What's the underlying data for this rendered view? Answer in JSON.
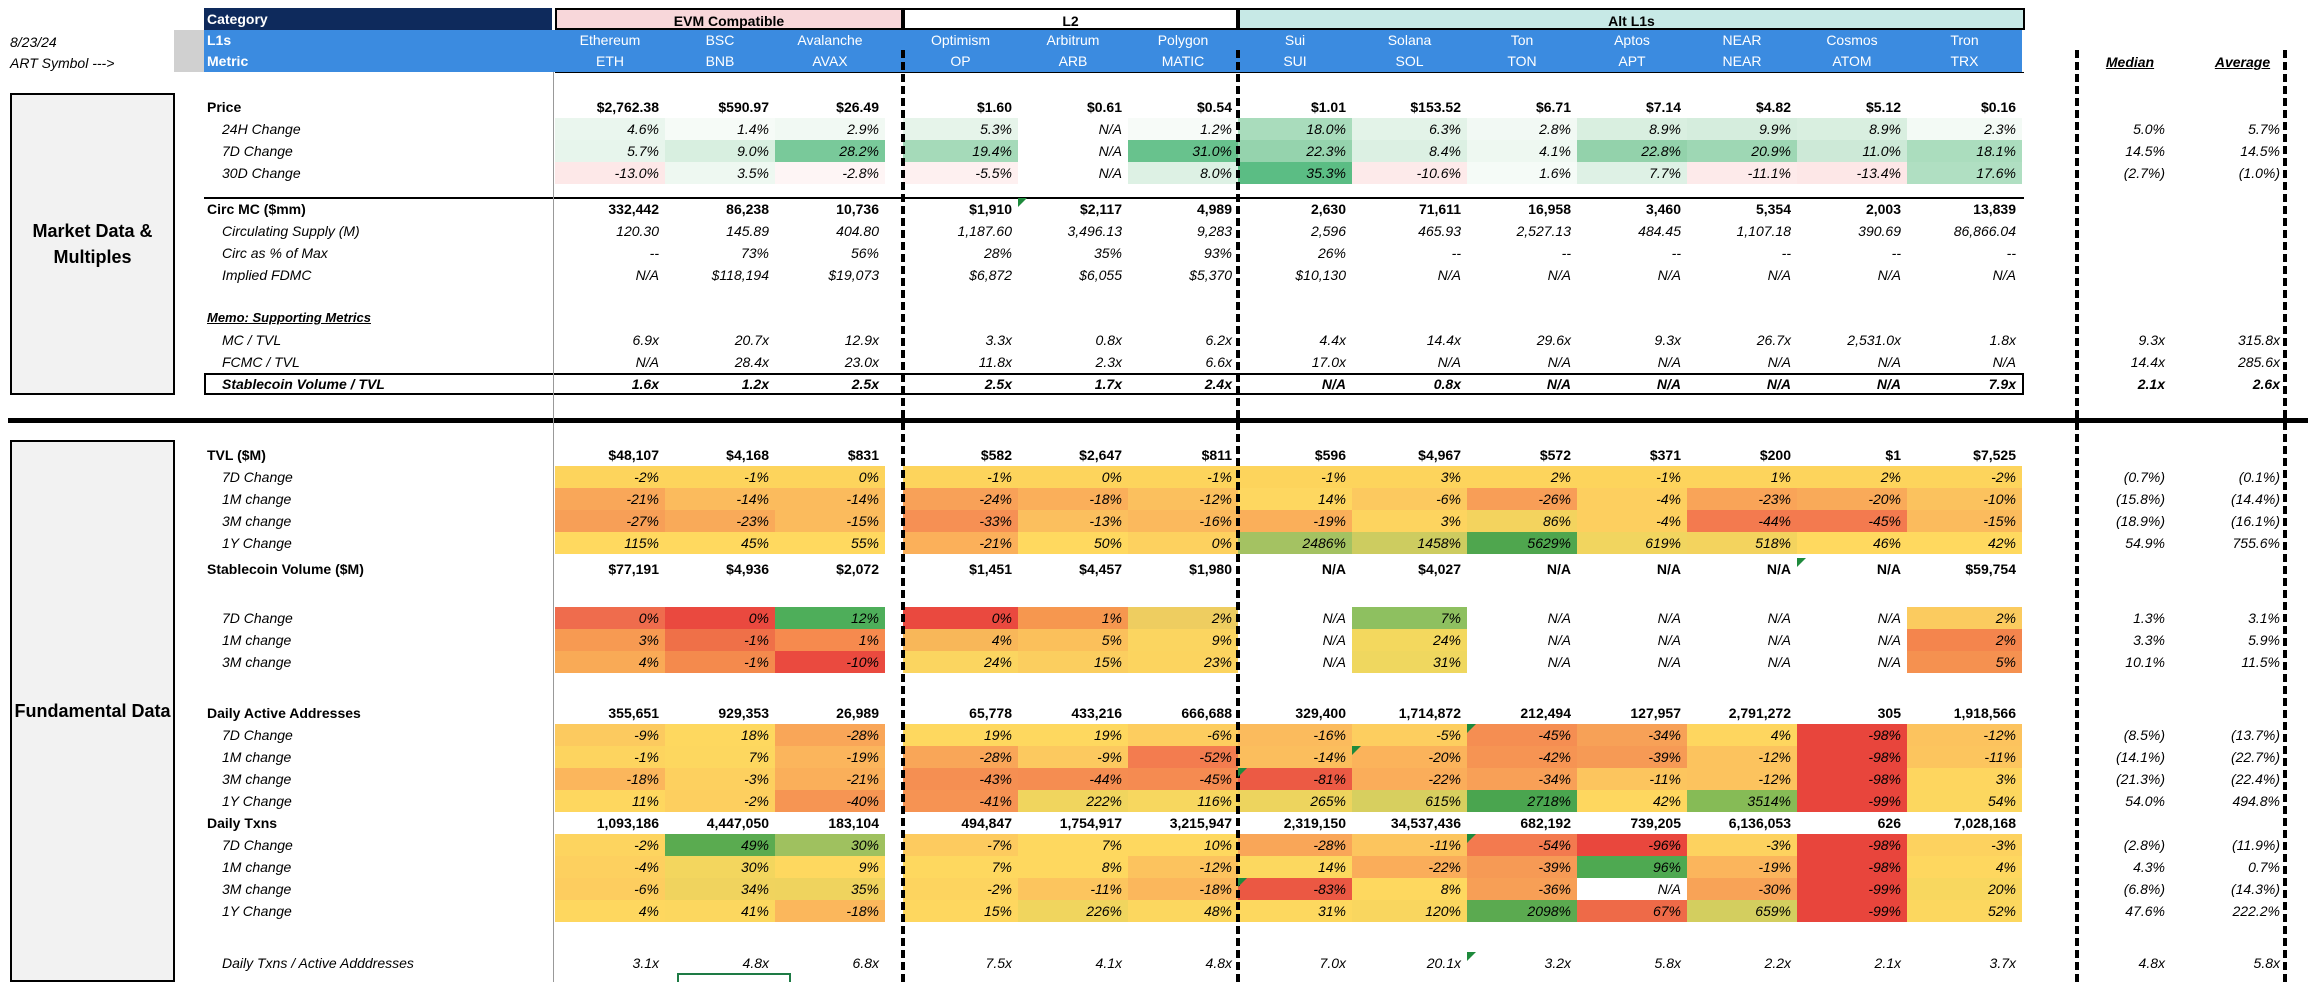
{
  "date": "8/23/24",
  "art_symbol_label": "ART Symbol --->",
  "header": {
    "category_label": "Category",
    "l1s_label": "L1s",
    "metric_label": "Metric",
    "groups": [
      {
        "label": "EVM Compatible",
        "color": "#f8d7da"
      },
      {
        "label": "L2",
        "color": "#ffffff"
      },
      {
        "label": "Alt L1s",
        "color": "#c7e9e6"
      }
    ],
    "chains": [
      "Ethereum",
      "BSC",
      "Avalanche",
      "Optimism",
      "Arbitrum",
      "Polygon",
      "Sui",
      "Solana",
      "Ton",
      "Aptos",
      "NEAR",
      "Cosmos",
      "Tron"
    ],
    "symbols": [
      "ETH",
      "BNB",
      "AVAX",
      "OP",
      "ARB",
      "MATIC",
      "SUI",
      "SOL",
      "TON",
      "APT",
      "NEAR",
      "ATOM",
      "TRX"
    ],
    "median": "Median",
    "average": "Average"
  },
  "sections": [
    "Market Data & Multiples",
    "Fundamental Data"
  ],
  "rows": [
    {
      "label": "Price",
      "bold": true,
      "values": [
        "$2,762.38",
        "$590.97",
        "$26.49",
        "$1.60",
        "$0.61",
        "$0.54",
        "$1.01",
        "$153.52",
        "$6.71",
        "$7.14",
        "$4.82",
        "$5.12",
        "$0.16"
      ],
      "median": "",
      "average": ""
    },
    {
      "label": "24H Change",
      "indent": true,
      "values": [
        "4.6%",
        "1.4%",
        "2.9%",
        "5.3%",
        "N/A",
        "1.2%",
        "18.0%",
        "6.3%",
        "2.8%",
        "8.9%",
        "9.9%",
        "8.9%",
        "2.3%"
      ],
      "colors": [
        "#eaf6ee",
        "#f6fbf7",
        "#f1f9f3",
        "#e6f4ea",
        "",
        "#f7fbf8",
        "#a9dcbc",
        "#e3f3e8",
        "#f2f9f4",
        "#d9efe0",
        "#d5eddd",
        "#d9efe0",
        "#f3faf5"
      ],
      "median": "5.0%",
      "average": "5.7%"
    },
    {
      "label": "7D Change",
      "indent": true,
      "values": [
        "5.7%",
        "9.0%",
        "28.2%",
        "19.4%",
        "N/A",
        "31.0%",
        "22.3%",
        "8.4%",
        "4.1%",
        "22.8%",
        "20.9%",
        "11.0%",
        "18.1%"
      ],
      "colors": [
        "#e7f5ec",
        "#d8efe0",
        "#79c99a",
        "#a5dab9",
        "",
        "#68c28d",
        "#95d3ad",
        "#dcf0e3",
        "#eef8f1",
        "#93d2ab",
        "#9ed7b4",
        "#cde9d7",
        "#abddbe"
      ],
      "median": "14.5%",
      "average": "14.5%"
    },
    {
      "label": "30D Change",
      "indent": true,
      "values": [
        "-13.0%",
        "3.5%",
        "-2.8%",
        "-5.5%",
        "N/A",
        "8.0%",
        "35.3%",
        "-10.6%",
        "1.6%",
        "7.7%",
        "-11.1%",
        "-13.4%",
        "17.6%"
      ],
      "colors": [
        "#fde8e8",
        "#eef8f1",
        "#fef5f5",
        "#fef0f0",
        "",
        "#ddf1e4",
        "#5bbd84",
        "#fdeaea",
        "#f5fbf7",
        "#def1e5",
        "#fdeaea",
        "#fde7e7",
        "#b0dfc2"
      ],
      "median": "(2.7%)",
      "average": "(1.0%)"
    },
    {
      "label": "Circ MC ($mm)",
      "bold": true,
      "values": [
        "332,442",
        "86,238",
        "10,736",
        "$1,910",
        "$2,117",
        "4,989",
        "2,630",
        "71,611",
        "16,958",
        "3,460",
        "5,354",
        "2,003",
        "13,839"
      ],
      "median": "",
      "average": ""
    },
    {
      "label": "Circulating Supply (M)",
      "indent": true,
      "values": [
        "120.30",
        "145.89",
        "404.80",
        "1,187.60",
        "3,496.13",
        "9,283",
        "2,596",
        "465.93",
        "2,527.13",
        "484.45",
        "1,107.18",
        "390.69",
        "86,866.04"
      ],
      "median": "",
      "average": ""
    },
    {
      "label": "Circ as % of Max",
      "indent": true,
      "values": [
        "--",
        "73%",
        "56%",
        "28%",
        "35%",
        "93%",
        "26%",
        "--",
        "--",
        "--",
        "--",
        "--",
        "--"
      ],
      "median": "",
      "average": ""
    },
    {
      "label": "Implied FDMC",
      "indent": true,
      "values": [
        "N/A",
        "$118,194",
        "$19,073",
        "$6,872",
        "$6,055",
        "$5,370",
        "$10,130",
        "N/A",
        "N/A",
        "N/A",
        "N/A",
        "N/A",
        "N/A"
      ],
      "median": "",
      "average": ""
    },
    {
      "label": "Memo: Supporting Metrics",
      "memo": true,
      "values": [],
      "median": "",
      "average": ""
    },
    {
      "label": "MC / TVL",
      "indent": true,
      "values": [
        "6.9x",
        "20.7x",
        "12.9x",
        "3.3x",
        "0.8x",
        "6.2x",
        "4.4x",
        "14.4x",
        "29.6x",
        "9.3x",
        "26.7x",
        "2,531.0x",
        "1.8x"
      ],
      "median": "9.3x",
      "average": "315.8x"
    },
    {
      "label": "FCMC / TVL",
      "indent": true,
      "values": [
        "N/A",
        "28.4x",
        "23.0x",
        "11.8x",
        "2.3x",
        "6.6x",
        "17.0x",
        "N/A",
        "N/A",
        "N/A",
        "N/A",
        "N/A",
        "N/A"
      ],
      "median": "14.4x",
      "average": "285.6x"
    },
    {
      "label": "Stablecoin Volume / TVL",
      "indent": true,
      "bold": true,
      "values": [
        "1.6x",
        "1.2x",
        "2.5x",
        "2.5x",
        "1.7x",
        "2.4x",
        "N/A",
        "0.8x",
        "N/A",
        "N/A",
        "N/A",
        "N/A",
        "7.9x"
      ],
      "median": "2.1x",
      "average": "2.6x"
    },
    {
      "label": "TVL ($M)",
      "bold": true,
      "values": [
        "$48,107",
        "$4,168",
        "$831",
        "$582",
        "$2,647",
        "$811",
        "$596",
        "$4,967",
        "$572",
        "$371",
        "$200",
        "$1",
        "$7,525"
      ],
      "median": "",
      "average": ""
    },
    {
      "label": "7D Change",
      "indent": true,
      "values": [
        "-2%",
        "-1%",
        "0%",
        "-1%",
        "0%",
        "-1%",
        "-1%",
        "3%",
        "2%",
        "-1%",
        "1%",
        "2%",
        "-2%"
      ],
      "colors": [
        "#fdd45c",
        "#fdd45c",
        "#fdd45c",
        "#fdd45c",
        "#fdd45c",
        "#fdd45c",
        "#fdd45c",
        "#fdd45c",
        "#fdd45c",
        "#fdd45c",
        "#fdd45c",
        "#fdd45c",
        "#fdd45c"
      ],
      "median": "(0.7%)",
      "average": "(0.1%)"
    },
    {
      "label": "1M change",
      "indent": true,
      "values": [
        "-21%",
        "-14%",
        "-14%",
        "-24%",
        "-18%",
        "-12%",
        "14%",
        "-6%",
        "-26%",
        "-4%",
        "-23%",
        "-20%",
        "-10%"
      ],
      "colors": [
        "#f9a759",
        "#fbbb5d",
        "#fbbb5d",
        "#f8a158",
        "#faaf5a",
        "#fbc05e",
        "#fed760",
        "#fcc95f",
        "#f89e57",
        "#fdcf5f",
        "#f9a458",
        "#f9aa59",
        "#fbc25e"
      ],
      "median": "(15.8%)",
      "average": "(14.4%)"
    },
    {
      "label": "3M change",
      "indent": true,
      "values": [
        "-27%",
        "-23%",
        "-15%",
        "-33%",
        "-13%",
        "-16%",
        "-19%",
        "3%",
        "86%",
        "-4%",
        "-44%",
        "-45%",
        "-15%"
      ],
      "colors": [
        "#f79f57",
        "#f9aa59",
        "#fbbb5d",
        "#f69054",
        "#fbbf5e",
        "#fbb95d",
        "#faaf5a",
        "#fdd45f",
        "#f3d35e",
        "#fdcf5f",
        "#f37a4f",
        "#f37a4f",
        "#fbbb5d"
      ],
      "median": "(18.9%)",
      "average": "(16.1%)"
    },
    {
      "label": "1Y Change",
      "indent": true,
      "values": [
        "115%",
        "45%",
        "55%",
        "-21%",
        "50%",
        "0%",
        "2486%",
        "1458%",
        "5629%",
        "619%",
        "518%",
        "46%",
        "42%"
      ],
      "colors": [
        "#ffd95f",
        "#ffd95f",
        "#ffd95f",
        "#fbb05a",
        "#ffd95f",
        "#fdd15f",
        "#a4c262",
        "#cdcc60",
        "#4fa64e",
        "#f1d55f",
        "#f3d35e",
        "#ffd95f",
        "#ffd95f"
      ],
      "median": "54.9%",
      "average": "755.6%"
    },
    {
      "label": "Stablecoin Volume ($M)",
      "bold": true,
      "values": [
        "$77,191",
        "$4,936",
        "$2,072",
        "$1,451",
        "$4,457",
        "$1,980",
        "N/A",
        "$4,027",
        "N/A",
        "N/A",
        "N/A",
        "N/A",
        "$59,754"
      ],
      "median": "",
      "average": ""
    },
    {
      "label": "7D Change",
      "indent": true,
      "values": [
        "0%",
        "0%",
        "12%",
        "0%",
        "1%",
        "2%",
        "N/A",
        "7%",
        "N/A",
        "N/A",
        "N/A",
        "N/A",
        "2%"
      ],
      "colors": [
        "#ef6c4d",
        "#ea493f",
        "#4eae5a",
        "#ea493f",
        "#f6974f",
        "#eecd60",
        "",
        "#8ec060",
        "",
        "",
        "",
        "",
        "#fbcb5f"
      ],
      "median": "1.3%",
      "average": "3.1%"
    },
    {
      "label": "1M change",
      "indent": true,
      "values": [
        "3%",
        "-1%",
        "1%",
        "4%",
        "5%",
        "9%",
        "N/A",
        "24%",
        "N/A",
        "N/A",
        "N/A",
        "N/A",
        "2%"
      ],
      "colors": [
        "#f79a52",
        "#ef7048",
        "#f68a4e",
        "#f8b759",
        "#fbc05b",
        "#fbd560",
        "",
        "#f3d85e",
        "",
        "",
        "",
        "",
        "#f4854d"
      ],
      "median": "3.3%",
      "average": "5.9%"
    },
    {
      "label": "3M change",
      "indent": true,
      "values": [
        "4%",
        "-1%",
        "-10%",
        "24%",
        "15%",
        "23%",
        "N/A",
        "31%",
        "N/A",
        "N/A",
        "N/A",
        "N/A",
        "5%"
      ],
      "colors": [
        "#f9aa56",
        "#f48a4d",
        "#ea4a3f",
        "#fbd560",
        "#fbce5f",
        "#fcd45f",
        "",
        "#efd75f",
        "",
        "",
        "",
        "",
        "#f59150"
      ],
      "median": "10.1%",
      "average": "11.5%"
    },
    {
      "label": "Daily Active Addresses",
      "bold": true,
      "values": [
        "355,651",
        "929,353",
        "26,989",
        "65,778",
        "433,216",
        "666,688",
        "329,400",
        "1,714,872",
        "212,494",
        "127,957",
        "2,791,272",
        "305",
        "1,918,566"
      ],
      "median": "",
      "average": ""
    },
    {
      "label": "7D Change",
      "indent": true,
      "values": [
        "-9%",
        "18%",
        "-28%",
        "19%",
        "19%",
        "-6%",
        "-16%",
        "-5%",
        "-45%",
        "-34%",
        "4%",
        "-98%",
        "-12%"
      ],
      "colors": [
        "#fcca5f",
        "#fed85f",
        "#f9a658",
        "#fed85f",
        "#fed85f",
        "#fdcd5f",
        "#fbbb5d",
        "#fdce5f",
        "#f58e52",
        "#f7a157",
        "#fed65f",
        "#e8453c",
        "#fcc35e"
      ],
      "median": "(8.5%)",
      "average": "(13.7%)"
    },
    {
      "label": "1M change",
      "indent": true,
      "values": [
        "-1%",
        "7%",
        "-19%",
        "-28%",
        "-9%",
        "-52%",
        "-14%",
        "-20%",
        "-42%",
        "-39%",
        "-12%",
        "-98%",
        "-11%"
      ],
      "colors": [
        "#fdd45f",
        "#fdd75f",
        "#fbb55c",
        "#f9a658",
        "#fcc95f",
        "#f37c4f",
        "#fbbe5d",
        "#fbb35b",
        "#f69453",
        "#f69a55",
        "#fcc35e",
        "#e8453c",
        "#fcc55e"
      ],
      "median": "(14.1%)",
      "average": "(22.7%)"
    },
    {
      "label": "3M change",
      "indent": true,
      "values": [
        "-18%",
        "-3%",
        "-21%",
        "-43%",
        "-44%",
        "-45%",
        "-81%",
        "-22%",
        "-34%",
        "-11%",
        "-12%",
        "-98%",
        "3%"
      ],
      "colors": [
        "#fbb65c",
        "#fdd05f",
        "#faaf5a",
        "#f58f52",
        "#f58d51",
        "#f58b51",
        "#ec5a44",
        "#faad5a",
        "#f8a057",
        "#fcc55e",
        "#fcc35e",
        "#e8453c",
        "#fed65f"
      ],
      "median": "(21.3%)",
      "average": "(22.4%)"
    },
    {
      "label": "1Y Change",
      "indent": true,
      "values": [
        "11%",
        "-2%",
        "-40%",
        "-41%",
        "222%",
        "116%",
        "265%",
        "615%",
        "2718%",
        "42%",
        "3514%",
        "-99%",
        "54%"
      ],
      "colors": [
        "#fed75f",
        "#fdcf5f",
        "#f69553",
        "#f69353",
        "#f0d55e",
        "#f7d75f",
        "#edd45e",
        "#d7cf5f",
        "#4aa54f",
        "#fed75f",
        "#86bb56",
        "#e8453c",
        "#fcd75f"
      ],
      "median": "54.0%",
      "average": "494.8%"
    },
    {
      "label": "Daily Txns",
      "bold": true,
      "values": [
        "1,093,186",
        "4,447,050",
        "183,104",
        "494,847",
        "1,754,917",
        "3,215,947",
        "2,319,150",
        "34,537,436",
        "682,192",
        "739,205",
        "6,136,053",
        "626",
        "7,028,168"
      ],
      "median": "",
      "average": ""
    },
    {
      "label": "7D Change",
      "indent": true,
      "values": [
        "-2%",
        "49%",
        "30%",
        "-7%",
        "7%",
        "10%",
        "-28%",
        "-11%",
        "-54%",
        "-96%",
        "-3%",
        "-98%",
        "-3%"
      ],
      "colors": [
        "#fdd45f",
        "#5aab50",
        "#9fc15f",
        "#fdcb5f",
        "#fed85f",
        "#fed85f",
        "#f9a658",
        "#fcc55e",
        "#f37a4f",
        "#e9473d",
        "#fdd25f",
        "#e8453c",
        "#fdd25f"
      ],
      "median": "(2.8%)",
      "average": "(11.9%)"
    },
    {
      "label": "1M change",
      "indent": true,
      "values": [
        "-4%",
        "30%",
        "9%",
        "7%",
        "8%",
        "-12%",
        "14%",
        "-22%",
        "-39%",
        "96%",
        "-19%",
        "-98%",
        "4%"
      ],
      "colors": [
        "#fdd05f",
        "#f3d65e",
        "#fed85f",
        "#fed85f",
        "#fed85f",
        "#fcc35e",
        "#fcd85f",
        "#faad5a",
        "#f69a55",
        "#4ea951",
        "#fbb55c",
        "#e8453c",
        "#fed75f"
      ],
      "median": "4.3%",
      "average": "0.7%"
    },
    {
      "label": "3M change",
      "indent": true,
      "values": [
        "-6%",
        "34%",
        "35%",
        "-2%",
        "-11%",
        "-18%",
        "-83%",
        "8%",
        "-36%",
        "N/A",
        "-30%",
        "-99%",
        "20%"
      ],
      "colors": [
        "#fdcd5f",
        "#f0d35e",
        "#efd35e",
        "#fdd45f",
        "#fcc55e",
        "#fbb75c",
        "#eb5843",
        "#fed85f",
        "#f79f56",
        "#ffffff",
        "#f8a357",
        "#e8453c",
        "#f8d75f"
      ],
      "median": "(6.8%)",
      "average": "(14.3%)"
    },
    {
      "label": "1Y Change",
      "indent": true,
      "values": [
        "4%",
        "41%",
        "-18%",
        "15%",
        "226%",
        "48%",
        "31%",
        "120%",
        "2098%",
        "67%",
        "659%",
        "-99%",
        "52%"
      ],
      "colors": [
        "#fed75f",
        "#fcd75f",
        "#fbb75c",
        "#fed75f",
        "#f0d55e",
        "#fcd75f",
        "#fdd85f",
        "#f9d65f",
        "#5baa50",
        "#ee6a48",
        "#d3ce5f",
        "#e8453c",
        "#fcd75f"
      ],
      "median": "47.6%",
      "average": "222.2%"
    },
    {
      "label": "Daily Txns / Active Adddresses",
      "indent": true,
      "values": [
        "3.1x",
        "4.8x",
        "6.8x",
        "7.5x",
        "4.1x",
        "4.8x",
        "7.0x",
        "20.1x",
        "3.2x",
        "5.8x",
        "2.2x",
        "2.1x",
        "3.7x"
      ],
      "median": "4.8x",
      "average": "5.8x"
    }
  ]
}
